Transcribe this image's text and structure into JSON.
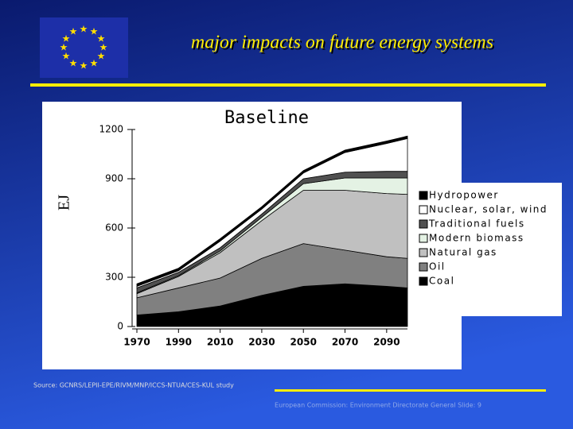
{
  "header": {
    "title": "major impacts on  future energy systems"
  },
  "source": "Source: GCNRS/LEPII-EPE/RIVM/MNP/ICCS-NTUA/CES-KUL study",
  "footer": "European Commission: Environment Directorate General Slide: 9",
  "chart_data": {
    "type": "stacked_area",
    "title": "Baseline",
    "y_label": "EJ",
    "x": [
      1970,
      1990,
      2010,
      2030,
      2050,
      2070,
      2090,
      2100
    ],
    "xlim": [
      1970,
      2100
    ],
    "xticks": [
      1970,
      1990,
      2010,
      2030,
      2050,
      2070,
      2090
    ],
    "ylim": [
      0,
      1200
    ],
    "yticks": [
      0,
      300,
      600,
      900,
      1200
    ],
    "series": [
      {
        "name": "Coal",
        "color": "#000000",
        "values": [
          70,
          90,
          125,
          190,
          245,
          260,
          245,
          235
        ]
      },
      {
        "name": "Oil",
        "color": "#808080",
        "values": [
          105,
          145,
          170,
          225,
          260,
          205,
          180,
          180
        ]
      },
      {
        "name": "Natural gas",
        "color": "#c0c0c0",
        "values": [
          25,
          70,
          155,
          230,
          325,
          365,
          385,
          390
        ]
      },
      {
        "name": "Modern biomass",
        "color": "#e4f2e4",
        "values": [
          5,
          5,
          10,
          20,
          40,
          75,
          95,
          100
        ]
      },
      {
        "name": "Traditional fuels",
        "color": "#505050",
        "values": [
          30,
          20,
          20,
          20,
          30,
          35,
          40,
          40
        ]
      },
      {
        "name": "Nuclear, solar, wind",
        "color": "#ffffff",
        "values": [
          10,
          10,
          40,
          30,
          35,
          120,
          170,
          200
        ]
      },
      {
        "name": "Hydropower",
        "color": "#000000",
        "values": [
          15,
          15,
          15,
          15,
          15,
          15,
          15,
          15
        ]
      }
    ]
  }
}
